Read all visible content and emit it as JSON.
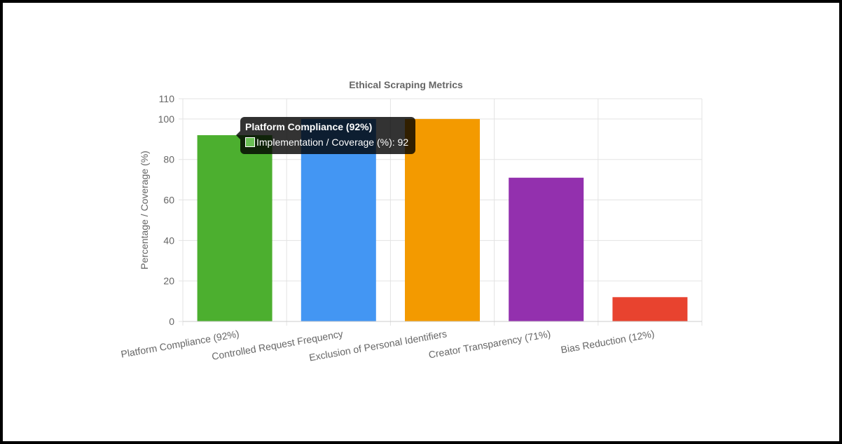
{
  "chart_data": {
    "type": "bar",
    "title": "Ethical Scraping Metrics",
    "xlabel": "",
    "ylabel": "Percentage / Coverage (%)",
    "categories": [
      "Platform Compliance (92%)",
      "Controlled Request Frequency",
      "Exclusion of Personal Identifiers",
      "Creator Transparency (71%)",
      "Bias Reduction (12%)"
    ],
    "series": [
      {
        "name": "Implementation / Coverage (%)",
        "values": [
          92,
          100,
          100,
          71,
          12
        ]
      }
    ],
    "colors": [
      "#4caf2f",
      "#4396f3",
      "#f39a00",
      "#9330ae",
      "#e8432f"
    ],
    "ylim": [
      0,
      110
    ],
    "yticks": [
      0,
      20,
      40,
      60,
      80,
      100,
      110
    ],
    "grid": true
  },
  "tooltip": {
    "title": "Platform Compliance (92%)",
    "body": "Implementation / Coverage (%): 92",
    "swatch_color": "#6abf55"
  }
}
